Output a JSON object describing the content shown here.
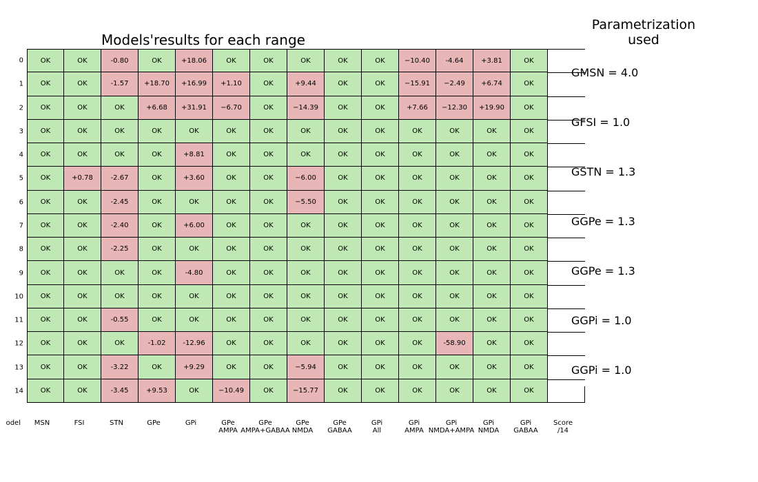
{
  "chart_data": {
    "type": "table",
    "title": "Models'results for each range",
    "side_title": "Parametrization\nused",
    "row_labels": [
      "0",
      "1",
      "2",
      "3",
      "4",
      "5",
      "6",
      "7",
      "8",
      "9",
      "10",
      "11",
      "12",
      "13",
      "14"
    ],
    "column_labels": [
      "odel",
      "MSN",
      "FSI",
      "STN",
      "GPe",
      "GPi",
      "GPe\nAMPA",
      "GPe\nAMPA+GABAA",
      "GPe\nNMDA",
      "GPe\nGABAA",
      "GPi\nAll",
      "GPi\nAMPA",
      "GPi\nNMDA+AMPA",
      "GPi\nNMDA",
      "GPi\nGABAA",
      "Score\n/14"
    ],
    "cells": [
      [
        "OK",
        "OK",
        "-0.80",
        "OK",
        "+18.06",
        "OK",
        "OK",
        "OK",
        "OK",
        "OK",
        "−10.40",
        "-4.64",
        "+3.81",
        "OK"
      ],
      [
        "OK",
        "OK",
        "-1.57",
        "+18.70",
        "+16.99",
        "+1.10",
        "OK",
        "+9.44",
        "OK",
        "OK",
        "−15.91",
        "−2.49",
        "+6.74",
        "OK"
      ],
      [
        "OK",
        "OK",
        "OK",
        "+6.68",
        "+31.91",
        "−6.70",
        "OK",
        "−14.39",
        "OK",
        "OK",
        "+7.66",
        "−12.30",
        "+19.90",
        "OK"
      ],
      [
        "OK",
        "OK",
        "OK",
        "OK",
        "OK",
        "OK",
        "OK",
        "OK",
        "OK",
        "OK",
        "OK",
        "OK",
        "OK",
        "OK"
      ],
      [
        "OK",
        "OK",
        "OK",
        "OK",
        "+8.81",
        "OK",
        "OK",
        "OK",
        "OK",
        "OK",
        "OK",
        "OK",
        "OK",
        "OK"
      ],
      [
        "OK",
        "+0.78",
        "-2.67",
        "OK",
        "+3.60",
        "OK",
        "OK",
        "−6.00",
        "OK",
        "OK",
        "OK",
        "OK",
        "OK",
        "OK"
      ],
      [
        "OK",
        "OK",
        "-2.45",
        "OK",
        "OK",
        "OK",
        "OK",
        "−5.50",
        "OK",
        "OK",
        "OK",
        "OK",
        "OK",
        "OK"
      ],
      [
        "OK",
        "OK",
        "-2.40",
        "OK",
        "+6.00",
        "OK",
        "OK",
        "OK",
        "OK",
        "OK",
        "OK",
        "OK",
        "OK",
        "OK"
      ],
      [
        "OK",
        "OK",
        "-2.25",
        "OK",
        "OK",
        "OK",
        "OK",
        "OK",
        "OK",
        "OK",
        "OK",
        "OK",
        "OK",
        "OK"
      ],
      [
        "OK",
        "OK",
        "OK",
        "OK",
        "-4.80",
        "OK",
        "OK",
        "OK",
        "OK",
        "OK",
        "OK",
        "OK",
        "OK",
        "OK"
      ],
      [
        "OK",
        "OK",
        "OK",
        "OK",
        "OK",
        "OK",
        "OK",
        "OK",
        "OK",
        "OK",
        "OK",
        "OK",
        "OK",
        "OK"
      ],
      [
        "OK",
        "OK",
        "-0.55",
        "OK",
        "OK",
        "OK",
        "OK",
        "OK",
        "OK",
        "OK",
        "OK",
        "OK",
        "OK",
        "OK"
      ],
      [
        "OK",
        "OK",
        "OK",
        "-1.02",
        "-12.96",
        "OK",
        "OK",
        "OK",
        "OK",
        "OK",
        "OK",
        "-58.90",
        "OK",
        "OK"
      ],
      [
        "OK",
        "OK",
        "-3.22",
        "OK",
        "+9.29",
        "OK",
        "OK",
        "−5.94",
        "OK",
        "OK",
        "OK",
        "OK",
        "OK",
        "OK"
      ],
      [
        "OK",
        "OK",
        "-3.45",
        "+9.53",
        "OK",
        "−10.49",
        "OK",
        "−15.77",
        "OK",
        "OK",
        "OK",
        "OK",
        "OK",
        "OK"
      ]
    ],
    "parameters": [
      "GMSN = 4.0",
      "GFSI = 1.0",
      "GSTN = 1.3",
      "GGPe = 1.3",
      "GGPe = 1.3",
      "GGPi = 1.0",
      "GGPi = 1.0"
    ],
    "colors": {
      "ok": "#c0e8b4",
      "out_of_range": "#e8b6b6"
    }
  }
}
